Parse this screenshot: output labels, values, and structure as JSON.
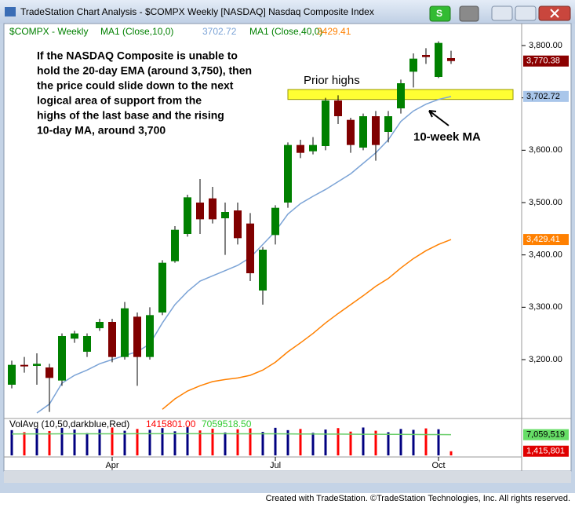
{
  "window": {
    "title": "TradeStation Chart Analysis - $COMPX Weekly [NASDAQ] Nasdaq Composite Index",
    "button": "S"
  },
  "footer": "Created with TradeStation. ©TradeStation Technologies, Inc. All rights reserved.",
  "chart_data": {
    "type": "candlestick",
    "symbol_label": "$COMPX - Weekly",
    "categories": [
      null,
      null,
      null,
      null,
      null,
      null,
      null,
      null,
      "Apr",
      null,
      null,
      null,
      null,
      null,
      null,
      null,
      null,
      null,
      null,
      null,
      null,
      "Jul",
      null,
      null,
      null,
      null,
      null,
      null,
      null,
      null,
      null,
      null,
      null,
      null,
      "Oct",
      null
    ],
    "open": [
      3152,
      3190,
      3188,
      3185,
      3160,
      3240,
      3215,
      3260,
      3272,
      3205,
      3282,
      3205,
      3290,
      3388,
      3440,
      3500,
      3508,
      3470,
      3485,
      3460,
      3332,
      3438,
      3500,
      3610,
      3598,
      3608,
      3695,
      3658,
      3605,
      3665,
      3635,
      3680,
      3750,
      3782,
      3740,
      3776
    ],
    "high": [
      3198,
      3205,
      3212,
      3192,
      3250,
      3255,
      3250,
      3278,
      3278,
      3310,
      3290,
      3300,
      3390,
      3455,
      3515,
      3545,
      3530,
      3500,
      3500,
      3480,
      3415,
      3495,
      3615,
      3620,
      3625,
      3700,
      3705,
      3662,
      3670,
      3675,
      3675,
      3735,
      3785,
      3795,
      3808,
      3790
    ],
    "low": [
      3145,
      3175,
      3152,
      3100,
      3150,
      3232,
      3205,
      3255,
      3195,
      3200,
      3150,
      3200,
      3285,
      3385,
      3435,
      3440,
      3460,
      3400,
      3420,
      3350,
      3305,
      3420,
      3490,
      3585,
      3592,
      3600,
      3650,
      3595,
      3600,
      3580,
      3615,
      3670,
      3720,
      3765,
      3738,
      3765
    ],
    "close": [
      3190,
      3188,
      3192,
      3165,
      3245,
      3250,
      3245,
      3272,
      3205,
      3298,
      3205,
      3285,
      3385,
      3448,
      3510,
      3468,
      3468,
      3482,
      3432,
      3365,
      3410,
      3490,
      3610,
      3595,
      3610,
      3695,
      3665,
      3610,
      3665,
      3610,
      3665,
      3728,
      3775,
      3778,
      3805,
      3770.38
    ],
    "up_color": "#008000",
    "down_color": "#800000",
    "series": [
      {
        "name": "MA1 (Close,10,0)",
        "color": "#7ba3d6",
        "values": [
          null,
          null,
          3098,
          3115,
          3155,
          3170,
          3180,
          3192,
          3200,
          3208,
          3215,
          3230,
          3270,
          3305,
          3330,
          3350,
          3360,
          3370,
          3380,
          3395,
          3420,
          3445,
          3478,
          3498,
          3512,
          3525,
          3540,
          3555,
          3575,
          3595,
          3620,
          3655,
          3675,
          3688,
          3697,
          3702.72
        ]
      },
      {
        "name": "MA1 (Close,40,0)",
        "color": "#ff8000",
        "values": [
          null,
          null,
          null,
          null,
          null,
          null,
          null,
          null,
          null,
          null,
          null,
          null,
          3105,
          3125,
          3140,
          3150,
          3158,
          3162,
          3165,
          3170,
          3180,
          3195,
          3215,
          3232,
          3250,
          3270,
          3288,
          3305,
          3322,
          3340,
          3355,
          3375,
          3393,
          3408,
          3420,
          3429.41
        ]
      }
    ],
    "ylim": [
      3092,
      3815
    ],
    "yticks": [
      {
        "value": 3200,
        "label": "3,200.00"
      },
      {
        "value": 3300,
        "label": "3,300.00"
      },
      {
        "value": 3400,
        "label": "3,400.00"
      },
      {
        "value": 3500,
        "label": "3,500.00"
      },
      {
        "value": 3600,
        "label": "3,600.00"
      },
      {
        "value": 3700,
        "label": "3,700.00"
      },
      {
        "value": 3800,
        "label": "3,800.00"
      }
    ],
    "price_flags": [
      {
        "value": 3770.38,
        "label": "3,770.38",
        "color": "#8b0000"
      },
      {
        "value": 3702.72,
        "label": "3,702.72",
        "color": "#a9c6ea"
      },
      {
        "value": 3429.41,
        "label": "3,429.41",
        "color": "#ff8000"
      }
    ],
    "volume": {
      "name": "VolAvg (10,50,darkblue,Red)",
      "up_color": "#000080",
      "down_color": "#ff0000",
      "avg_color": "#66cc66",
      "ylim": [
        0,
        11500000
      ],
      "values": [
        8600000,
        7900000,
        9100000,
        8300000,
        9400000,
        8800000,
        7600000,
        8900000,
        9500000,
        8400000,
        9000000,
        8700000,
        9300000,
        8200000,
        9600000,
        8500000,
        9100000,
        7800000,
        8900000,
        9200000,
        8000000,
        9400000,
        8600000,
        9000000,
        7700000,
        8800000,
        9300000,
        8100000,
        9500000,
        8400000,
        7900000,
        9000000,
        8700000,
        9200000,
        8900000,
        1415801
      ],
      "avg_values": [
        7300000,
        7310000,
        7320000,
        7330000,
        7340000,
        7350000,
        7360000,
        7360000,
        7370000,
        7370000,
        7380000,
        7380000,
        7380000,
        7390000,
        7390000,
        7390000,
        7380000,
        7380000,
        7370000,
        7360000,
        7350000,
        7340000,
        7320000,
        7300000,
        7280000,
        7260000,
        7240000,
        7220000,
        7200000,
        7180000,
        7160000,
        7140000,
        7120000,
        7100000,
        7080000,
        7059518.5
      ],
      "readouts": [
        {
          "value": 1415801,
          "label": "1415801.00",
          "color": "#ff0000"
        },
        {
          "value": 7059518.5,
          "label": "7059518.50",
          "color": "#33cc33"
        }
      ],
      "flags": [
        {
          "value": 7059519,
          "label": "7,059,519",
          "color": "#66dd66"
        },
        {
          "value": 1415801,
          "label": "1,415,801",
          "color": "#e00000"
        }
      ]
    },
    "annotations": {
      "text": [
        "If the NASDAQ Composite is unable to",
        "hold the 20-day EMA (around 3,750), then",
        "the price could slide down to the next",
        "logical area of support from the",
        "highs of the last base and the rising",
        "10-day MA, around 3,700"
      ],
      "band_label": "Prior highs",
      "band": [
        3697,
        3716
      ],
      "ma_label": "10-week MA"
    }
  }
}
